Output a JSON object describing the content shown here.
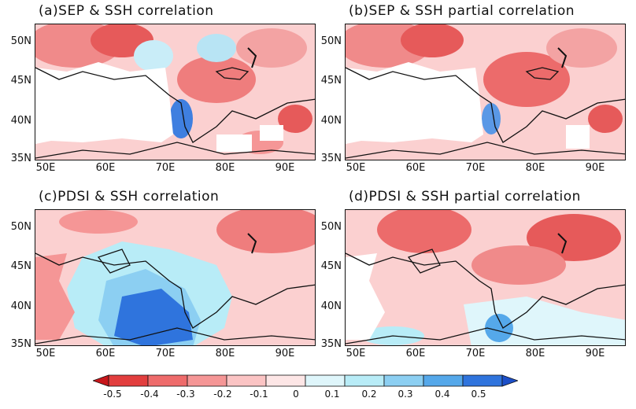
{
  "panels": [
    {
      "id": "a",
      "title": "(a)SEP & SSH correlation"
    },
    {
      "id": "b",
      "title": "(b)SEP & SSH partial correlation"
    },
    {
      "id": "c",
      "title": "(c)PDSI & SSH correlation"
    },
    {
      "id": "d",
      "title": "(d)PDSI & SSH partial correlation"
    }
  ],
  "y_axis": [
    "50N",
    "45N",
    "40N",
    "35N"
  ],
  "x_axis": [
    "50E",
    "60E",
    "70E",
    "80E",
    "90E"
  ],
  "colorbar": {
    "labels": [
      "-0.5",
      "-0.4",
      "-0.3",
      "-0.2",
      "-0.1",
      "0",
      "0.1",
      "0.2",
      "0.3",
      "0.4",
      "0.5"
    ],
    "colors": [
      "#c8161b",
      "#e23e3e",
      "#ee6b6b",
      "#f59696",
      "#fbc4c4",
      "#fde6e6",
      "#dff6fb",
      "#b8ecf7",
      "#8ccff2",
      "#55a8ea",
      "#2f74dd",
      "#1c4fc8"
    ]
  }
}
